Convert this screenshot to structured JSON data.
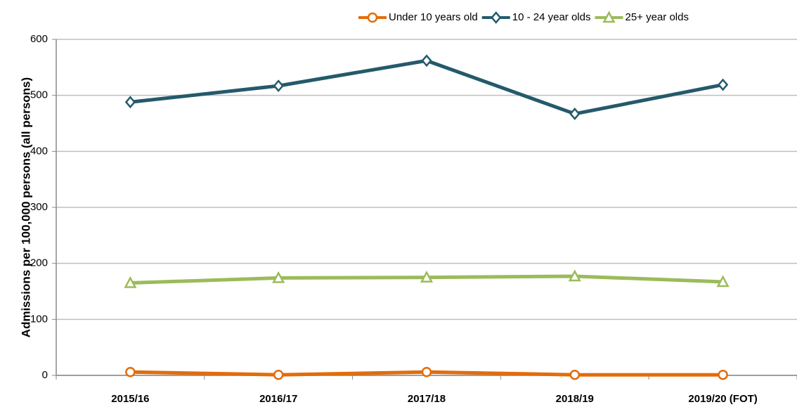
{
  "chart_data": {
    "type": "line",
    "y_label": "Admissions per 100,000 persons (all persons)",
    "categories": [
      "2015/16",
      "2016/17",
      "2017/18",
      "2018/19",
      "2019/20 (FOT)"
    ],
    "series": [
      {
        "name": "Under 10 years old",
        "color": "#e36c0a",
        "marker": "circle",
        "values": [
          6,
          1,
          6,
          1,
          1
        ]
      },
      {
        "name": "10 - 24 year olds",
        "color": "#245a6b",
        "marker": "diamond",
        "values": [
          488,
          517,
          562,
          467,
          519
        ]
      },
      {
        "name": "25+ year olds",
        "color": "#9bbb59",
        "marker": "triangle",
        "values": [
          165,
          174,
          175,
          177,
          167
        ]
      }
    ],
    "ylim": [
      0,
      600
    ],
    "yticks": [
      0,
      100,
      200,
      300,
      400,
      500,
      600
    ],
    "grid": true
  }
}
